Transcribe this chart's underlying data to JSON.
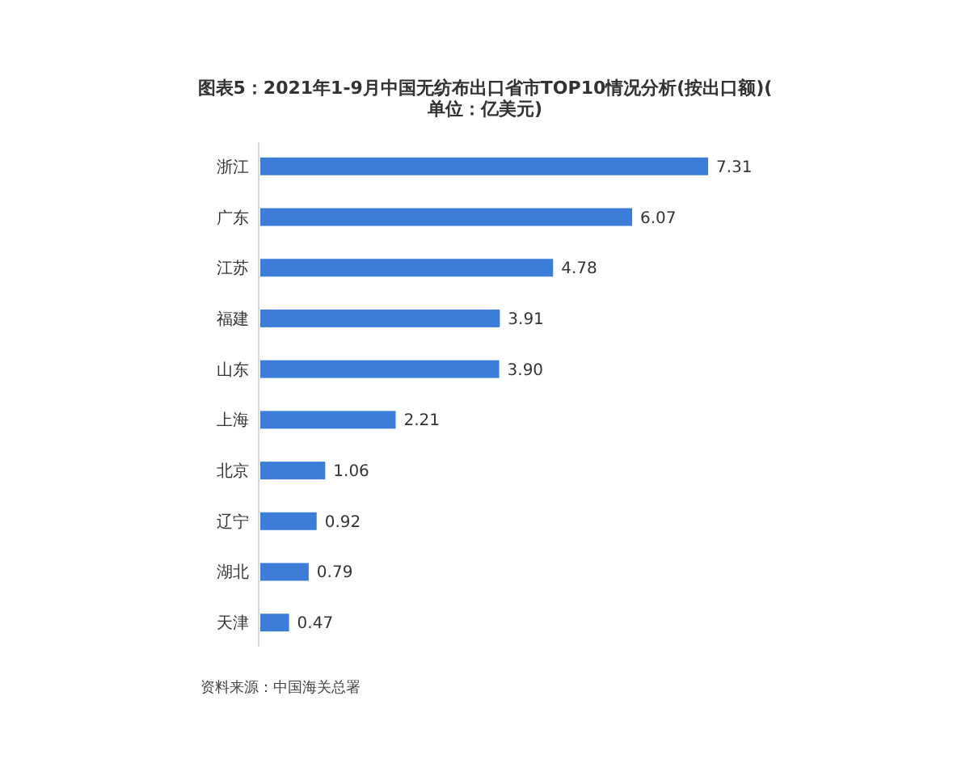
{
  "chart_data": {
    "type": "bar",
    "orientation": "horizontal",
    "title": "图表5：2021年1-9月中国无纺布出口省市TOP10情况分析(按出口额)(单位：亿美元)",
    "categories": [
      "浙江",
      "广东",
      "江苏",
      "福建",
      "山东",
      "上海",
      "北京",
      "辽宁",
      "湖北",
      "天津"
    ],
    "values": [
      7.31,
      6.07,
      4.78,
      3.91,
      3.9,
      2.21,
      1.06,
      0.92,
      0.79,
      0.47
    ],
    "value_labels": [
      "7.31",
      "6.07",
      "4.78",
      "3.91",
      "3.90",
      "2.21",
      "1.06",
      "0.92",
      "0.79",
      "0.47"
    ],
    "color": "#3b7dd8",
    "annotations": [
      "资料来源：中国海关总署"
    ]
  }
}
